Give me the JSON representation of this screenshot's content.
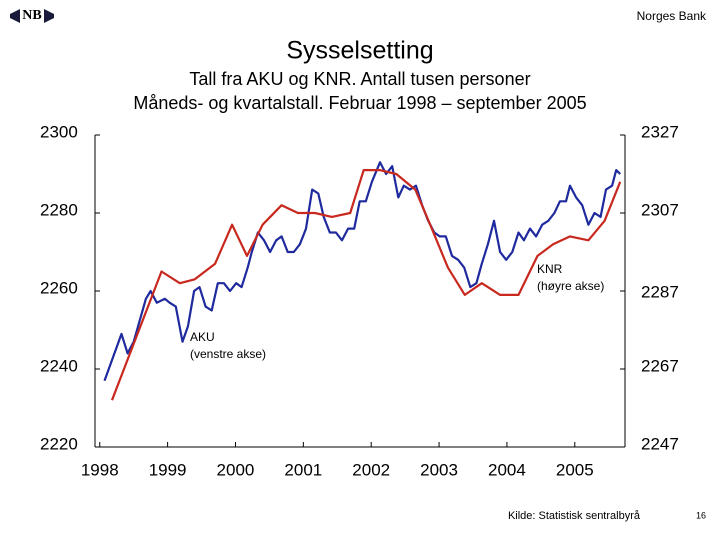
{
  "header": {
    "brand": "Norges Bank"
  },
  "chart_data": {
    "type": "line",
    "title": "Sysselsetting",
    "subtitle": [
      "Tall fra AKU og KNR. Antall tusen personer",
      "Måneds- og kvartalstall. Februar 1998 – september 2005"
    ],
    "xlim": [
      1997.93,
      2005.74
    ],
    "xticks": [
      1998,
      1999,
      2000,
      2001,
      2002,
      2003,
      2004,
      2005
    ],
    "ylim": [
      2220,
      2300
    ],
    "yticks": [
      2220,
      2240,
      2260,
      2280,
      2300
    ],
    "y2lim": [
      2247,
      2327
    ],
    "y2ticks": [
      2247,
      2267,
      2287,
      2307,
      2327
    ],
    "grid": false,
    "series": [
      {
        "name": "AKU",
        "note": "(venstre akse)",
        "color": "#1f2a9e",
        "axis": "y",
        "x": [
          1998.07,
          1998.32,
          1998.41,
          1998.5,
          1998.68,
          1998.75,
          1998.84,
          1998.96,
          1999.03,
          1999.12,
          1999.22,
          1999.3,
          1999.39,
          1999.47,
          1999.56,
          1999.65,
          1999.74,
          1999.83,
          1999.92,
          2000.01,
          2000.09,
          2000.18,
          2000.24,
          2000.33,
          2000.42,
          2000.51,
          2000.6,
          2000.68,
          2000.77,
          2000.86,
          2000.95,
          2001.04,
          2001.13,
          2001.22,
          2001.3,
          2001.39,
          2001.48,
          2001.57,
          2001.66,
          2001.75,
          2001.83,
          2001.92,
          2002.01,
          2002.13,
          2002.22,
          2002.31,
          2002.4,
          2002.48,
          2002.57,
          2002.66,
          2002.75,
          2002.84,
          2002.93,
          2003.01,
          2003.1,
          2003.19,
          2003.28,
          2003.37,
          2003.46,
          2003.55,
          2003.63,
          2003.72,
          2003.81,
          2003.9,
          2003.99,
          2004.08,
          2004.17,
          2004.25,
          2004.34,
          2004.43,
          2004.52,
          2004.61,
          2004.7,
          2004.78,
          2004.87,
          2004.93,
          2005.02,
          2005.11,
          2005.2,
          2005.29,
          2005.38,
          2005.46,
          2005.55,
          2005.61,
          2005.67
        ],
        "values": [
          2237,
          2249,
          2244,
          2247,
          2258,
          2260,
          2257,
          2258,
          2257,
          2256,
          2247,
          2251,
          2260,
          2261,
          2256,
          2255,
          2262,
          2262,
          2260,
          2262,
          2261,
          2266,
          2270,
          2275,
          2273,
          2270,
          2273,
          2274,
          2270,
          2270,
          2272,
          2276,
          2286,
          2285,
          2279,
          2275,
          2275,
          2273,
          2276,
          2276,
          2283,
          2283,
          2288,
          2293,
          2290,
          2292,
          2284,
          2287,
          2286,
          2287,
          2282,
          2278,
          2275,
          2274,
          2274,
          2269,
          2268,
          2266,
          2261,
          2262,
          2267,
          2272,
          2278,
          2270,
          2268,
          2270,
          2275,
          2273,
          2276,
          2274,
          2277,
          2278,
          2280,
          2283,
          2283,
          2287,
          2284,
          2282,
          2277,
          2280,
          2279,
          2286,
          2287,
          2291,
          2290
        ]
      },
      {
        "name": "KNR",
        "note": "(høyre akse)",
        "color": "#c8281e",
        "axis": "y2",
        "x": [
          1998.18,
          1998.91,
          1999.18,
          1999.4,
          1999.7,
          1999.95,
          2000.17,
          2000.4,
          2000.68,
          2000.92,
          2001.17,
          2001.42,
          2001.69,
          2001.89,
          2002.13,
          2002.37,
          2002.65,
          2002.87,
          2003.13,
          2003.38,
          2003.63,
          2003.9,
          2004.17,
          2004.45,
          2004.68,
          2004.93,
          2005.2,
          2005.44,
          2005.67
        ],
        "values": [
          2259,
          2292,
          2289,
          2290,
          2294,
          2304,
          2296,
          2304,
          2309,
          2307,
          2307,
          2306,
          2307,
          2318,
          2318,
          2317,
          2313,
          2304,
          2293,
          2286,
          2289,
          2286,
          2286,
          2296,
          2299,
          2301,
          2300,
          2305,
          2315
        ]
      }
    ]
  },
  "footer": {
    "source": "Kilde: Statistisk sentralbyrå",
    "page": 16
  }
}
